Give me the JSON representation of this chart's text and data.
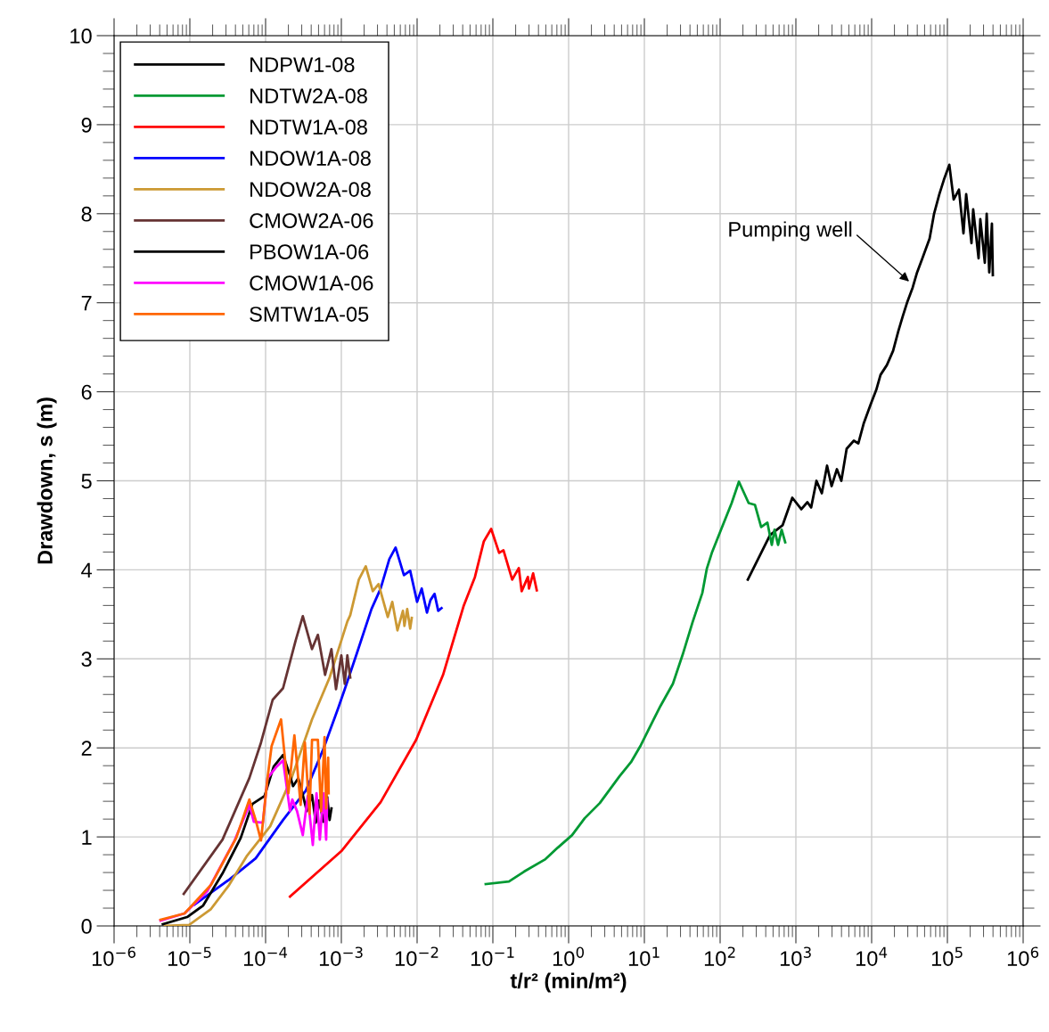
{
  "chart_data": {
    "type": "line",
    "xlabel": "t/r² (min/m²)",
    "ylabel": "Drawdown, s (m)",
    "log": "x",
    "xlim": [
      1e-06,
      1000000.0
    ],
    "ylim": [
      0,
      10
    ],
    "xticks": [
      {
        "value": 1e-06,
        "label": "10$^{−6}$"
      },
      {
        "value": 1e-05,
        "label": "10$^{−5}$"
      },
      {
        "value": 0.0001,
        "label": "10$^{−4}$"
      },
      {
        "value": 0.001,
        "label": "10$^{−3}$"
      },
      {
        "value": 0.01,
        "label": "10$^{−2}$"
      },
      {
        "value": 0.1,
        "label": "10$^{−1}$"
      },
      {
        "value": 1,
        "label": "10$^{0}$"
      },
      {
        "value": 10,
        "label": "10$^{1}$"
      },
      {
        "value": 100,
        "label": "10$^{2}$"
      },
      {
        "value": 1000,
        "label": "10$^{3}$"
      },
      {
        "value": 10000,
        "label": "10$^{4}$"
      },
      {
        "value": 100000,
        "label": "10$^{5}$"
      },
      {
        "value": 1000000,
        "label": "10$^{6}$"
      }
    ],
    "yticks": [
      0,
      1,
      2,
      3,
      4,
      5,
      6,
      7,
      8,
      9,
      10
    ],
    "grid": true,
    "legend": "top left",
    "line_style": "solid",
    "annotations": [
      {
        "text": "Pumping well",
        "x": 33000,
        "y": 7.22
      }
    ],
    "series": [
      {
        "name": "NDPW1-08",
        "color": "#000000",
        "x": [
          232,
          456,
          667,
          897,
          1180,
          1420,
          1590,
          1870,
          2200,
          2580,
          2960,
          3480,
          3980,
          4680,
          5820,
          6670,
          7830,
          9730,
          11500,
          13100,
          15900,
          19200,
          22500,
          25800,
          29600,
          34800,
          39800,
          46800,
          58200,
          66700,
          78300,
          89800,
          106000,
          121000,
          142000,
          163000,
          177000,
          208000,
          219000,
          258000,
          272000,
          312000,
          330000,
          357000,
          387000,
          398000
        ],
        "values": [
          3.89,
          4.39,
          4.5,
          4.81,
          4.68,
          4.76,
          4.7,
          5.0,
          4.86,
          5.17,
          4.94,
          5.13,
          5.0,
          5.36,
          5.45,
          5.42,
          5.64,
          5.86,
          6.02,
          6.19,
          6.3,
          6.46,
          6.68,
          6.85,
          7.01,
          7.17,
          7.34,
          7.5,
          7.72,
          8.0,
          8.22,
          8.38,
          8.55,
          8.16,
          8.27,
          7.78,
          8.22,
          7.67,
          8.05,
          7.5,
          7.94,
          7.45,
          8.0,
          7.34,
          7.89,
          7.31
        ]
      },
      {
        "name": "NDTW2A-08",
        "color": "#009933",
        "x": [
          0.0805,
          0.163,
          0.258,
          0.494,
          0.72,
          1.11,
          1.63,
          2.58,
          4.69,
          6.66,
          8.98,
          13.1,
          16.3,
          23.8,
          32.1,
          43.2,
          58.2,
          66.6,
          78.4,
          106,
          142,
          177,
          238,
          288,
          348,
          421,
          481,
          522,
          582,
          649,
          723
        ],
        "values": [
          0.47,
          0.5,
          0.61,
          0.75,
          0.88,
          1.02,
          1.21,
          1.38,
          1.68,
          1.84,
          2.03,
          2.31,
          2.47,
          2.72,
          3.05,
          3.41,
          3.74,
          4.01,
          4.2,
          4.48,
          4.75,
          4.99,
          4.75,
          4.73,
          4.48,
          4.53,
          4.28,
          4.45,
          4.28,
          4.45,
          4.31
        ]
      },
      {
        "name": "NDTW1A-08",
        "color": "#ff0000",
        "x": [
          0.00021,
          0.001,
          0.0033,
          0.0097,
          0.022,
          0.041,
          0.058,
          0.076,
          0.095,
          0.121,
          0.138,
          0.18,
          0.22,
          0.24,
          0.29,
          0.3,
          0.34,
          0.38
        ],
        "values": [
          0.33,
          0.84,
          1.39,
          2.09,
          2.82,
          3.59,
          3.92,
          4.32,
          4.46,
          4.19,
          4.22,
          3.89,
          4.02,
          3.76,
          3.92,
          3.79,
          3.96,
          3.77
        ]
      },
      {
        "name": "NDOW1A-08",
        "color": "#0000ff",
        "x": [
          1.15e-05,
          3.3e-05,
          7.4e-05,
          0.00017,
          0.00034,
          0.00058,
          0.00092,
          0.00111,
          0.0016,
          0.0025,
          0.0033,
          0.0043,
          0.0052,
          0.0067,
          0.0081,
          0.01,
          0.0115,
          0.0135,
          0.015,
          0.017,
          0.019,
          0.021
        ],
        "values": [
          0.24,
          0.52,
          0.76,
          1.19,
          1.52,
          1.99,
          2.46,
          2.66,
          3.06,
          3.56,
          3.79,
          4.12,
          4.25,
          3.94,
          3.99,
          3.64,
          3.79,
          3.52,
          3.66,
          3.73,
          3.54,
          3.57
        ]
      },
      {
        "name": "NDOW2A-08",
        "color": "#cc9933",
        "x": [
          4.7e-06,
          9.7e-06,
          1.9e-05,
          3.3e-05,
          5.7e-05,
          0.000115,
          0.00022,
          0.00041,
          0.0007,
          0.0012,
          0.00131,
          0.0017,
          0.0021,
          0.0026,
          0.0031,
          0.0041,
          0.0047,
          0.0055,
          0.0065,
          0.0068,
          0.0074,
          0.0081,
          0.0085
        ],
        "values": [
          0.0,
          0.01,
          0.19,
          0.46,
          0.79,
          1.12,
          1.66,
          2.32,
          2.79,
          3.42,
          3.49,
          3.89,
          4.04,
          3.76,
          3.84,
          3.47,
          3.64,
          3.32,
          3.54,
          3.37,
          3.56,
          3.34,
          3.46
        ]
      },
      {
        "name": "CMOW2A-06",
        "color": "#663333",
        "x": [
          8.3e-06,
          2.7e-05,
          6.1e-05,
          8.7e-05,
          0.000124,
          0.00017,
          0.00025,
          0.00031,
          0.00041,
          0.00049,
          0.00061,
          0.00074,
          0.00085,
          0.001,
          0.00111,
          0.0012,
          0.00131
        ],
        "values": [
          0.36,
          0.97,
          1.66,
          2.06,
          2.54,
          2.67,
          3.21,
          3.48,
          3.11,
          3.27,
          2.82,
          3.11,
          2.66,
          3.04,
          2.72,
          3.04,
          2.79
        ]
      },
      {
        "name": "PBOW1A-06",
        "color": "#000000",
        "x": [
          4.4e-06,
          9.2e-06,
          1.5e-05,
          2.7e-05,
          4.7e-05,
          6.7e-05,
          9.7e-05,
          0.000128,
          0.00017,
          0.00021,
          0.00023,
          0.00027,
          0.0003,
          0.00035,
          0.00041,
          0.00046,
          0.00051,
          0.00058,
          0.00065,
          0.0007,
          0.00074
        ],
        "values": [
          0.02,
          0.1,
          0.23,
          0.59,
          0.99,
          1.37,
          1.46,
          1.79,
          1.92,
          1.69,
          1.57,
          1.66,
          1.52,
          1.29,
          1.47,
          1.16,
          1.41,
          1.17,
          1.45,
          1.19,
          1.32
        ]
      },
      {
        "name": "CMOW1A-06",
        "color": "#ff00ff",
        "x": [
          4.1e-06,
          8.5e-06,
          1.7e-05,
          3.9e-05,
          6.1e-05,
          7e-05,
          9.2e-05,
          0.000106,
          0.00014,
          0.00017,
          0.00021,
          0.000225,
          0.00026,
          0.00031,
          0.00036,
          0.00042,
          0.00047,
          0.00052,
          0.00058,
          0.00063,
          0.00065
        ],
        "values": [
          0.06,
          0.14,
          0.39,
          0.96,
          1.36,
          1.17,
          1.16,
          1.66,
          1.79,
          1.86,
          1.29,
          1.42,
          1.29,
          1.02,
          1.46,
          0.91,
          1.49,
          0.97,
          1.49,
          0.97,
          1.42
        ]
      },
      {
        "name": "SMTW1A-05",
        "color": "#ff6600",
        "x": [
          4.1e-06,
          8.5e-06,
          1.9e-05,
          4.1e-05,
          6.1e-05,
          7.4e-05,
          8.7e-05,
          0.000106,
          0.00012,
          0.00016,
          0.0002,
          0.00024,
          0.00029,
          0.00033,
          0.00038,
          0.00041,
          0.00049,
          0.00054,
          0.0006,
          0.00063,
          0.00067,
          0.00068
        ],
        "values": [
          0.07,
          0.14,
          0.46,
          0.99,
          1.42,
          1.19,
          0.96,
          1.66,
          2.02,
          2.32,
          1.49,
          2.14,
          1.36,
          2.06,
          1.26,
          2.09,
          2.09,
          1.29,
          2.12,
          1.32,
          1.89,
          1.49
        ]
      }
    ]
  }
}
